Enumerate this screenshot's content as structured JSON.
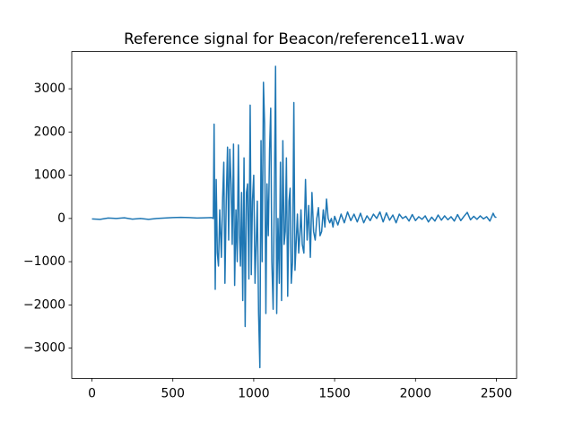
{
  "chart_data": {
    "type": "line",
    "title": "Reference signal for Beacon/reference11.wav",
    "x": [
      0,
      50,
      100,
      150,
      200,
      250,
      300,
      350,
      400,
      450,
      500,
      550,
      600,
      650,
      700,
      740,
      750,
      755,
      762,
      768,
      775,
      782,
      790,
      800,
      808,
      815,
      822,
      830,
      838,
      845,
      852,
      860,
      867,
      875,
      882,
      890,
      898,
      905,
      912,
      918,
      925,
      932,
      940,
      947,
      955,
      962,
      970,
      978,
      985,
      992,
      1000,
      1008,
      1015,
      1022,
      1030,
      1038,
      1045,
      1052,
      1060,
      1067,
      1075,
      1082,
      1090,
      1098,
      1105,
      1112,
      1120,
      1128,
      1135,
      1142,
      1150,
      1158,
      1165,
      1172,
      1180,
      1188,
      1195,
      1202,
      1210,
      1218,
      1225,
      1232,
      1240,
      1248,
      1255,
      1262,
      1270,
      1278,
      1285,
      1292,
      1300,
      1310,
      1320,
      1330,
      1340,
      1350,
      1360,
      1370,
      1380,
      1390,
      1400,
      1410,
      1420,
      1430,
      1440,
      1450,
      1460,
      1470,
      1480,
      1490,
      1500,
      1520,
      1540,
      1560,
      1580,
      1600,
      1620,
      1640,
      1660,
      1680,
      1700,
      1720,
      1740,
      1760,
      1780,
      1800,
      1820,
      1840,
      1860,
      1880,
      1900,
      1920,
      1940,
      1960,
      1980,
      2000,
      2020,
      2040,
      2060,
      2080,
      2100,
      2120,
      2140,
      2160,
      2180,
      2200,
      2220,
      2240,
      2260,
      2280,
      2300,
      2320,
      2340,
      2360,
      2380,
      2400,
      2420,
      2440,
      2460,
      2480,
      2490,
      2500
    ],
    "series": [
      {
        "color": "#1f77b4",
        "values": [
          -10,
          -20,
          10,
          0,
          15,
          -15,
          0,
          -20,
          0,
          10,
          20,
          25,
          20,
          10,
          15,
          20,
          0,
          2180,
          -1640,
          900,
          -800,
          -1100,
          200,
          -900,
          500,
          1300,
          -1500,
          400,
          1650,
          -500,
          1600,
          800,
          -600,
          1720,
          -1550,
          200,
          -1000,
          1700,
          -400,
          -1100,
          600,
          -1900,
          1400,
          -2500,
          600,
          800,
          -1400,
          2620,
          -1300,
          400,
          1000,
          -1500,
          -600,
          400,
          -2200,
          -3450,
          1800,
          -1000,
          3150,
          2200,
          -2200,
          800,
          -400,
          1600,
          2550,
          -1000,
          -2100,
          800,
          3520,
          -2200,
          0,
          -1500,
          1300,
          -1900,
          1800,
          -600,
          -300,
          1400,
          -1800,
          400,
          700,
          -1500,
          -1000,
          2680,
          -1200,
          -600,
          100,
          -800,
          -400,
          200,
          -600,
          -800,
          900,
          -500,
          300,
          -900,
          600,
          -300,
          -500,
          0,
          250,
          -400,
          -300,
          200,
          -200,
          450,
          0,
          -100,
          0,
          -200,
          50,
          -150,
          100,
          -100,
          150,
          -50,
          100,
          -80,
          120,
          -100,
          60,
          -50,
          100,
          0,
          150,
          -80,
          130,
          -40,
          80,
          -100,
          100,
          0,
          50,
          -60,
          90,
          -50,
          40,
          -20,
          60,
          -80,
          30,
          -60,
          80,
          -40,
          60,
          -30,
          40,
          -60,
          90,
          -50,
          50,
          140,
          -30,
          50,
          -20,
          60,
          -10,
          40,
          -60,
          120,
          40,
          20
        ]
      }
    ],
    "xlim": [
      -125,
      2625
    ],
    "ylim": [
      -3700,
      3860
    ],
    "xticks": [
      0,
      500,
      1000,
      1500,
      2000,
      2500
    ],
    "yticks": [
      {
        "value": -3000,
        "label": "−3000"
      },
      {
        "value": -2000,
        "label": "−2000"
      },
      {
        "value": -1000,
        "label": "−1000"
      },
      0,
      1000,
      2000,
      3000
    ]
  }
}
